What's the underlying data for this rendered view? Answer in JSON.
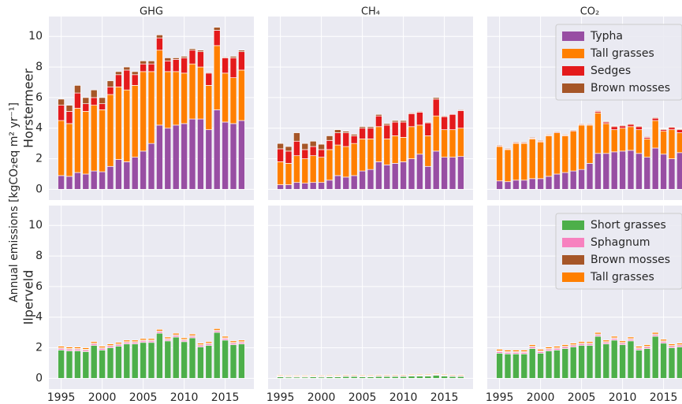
{
  "chart_data": [
    {
      "type": "bar",
      "title": "GHG",
      "row_label": "Horstermeer",
      "ylabel": "Annual emissions [kgCO₂eq m² yr⁻¹]",
      "x": [
        1995,
        1996,
        1997,
        1998,
        1999,
        2000,
        2001,
        2002,
        2003,
        2004,
        2005,
        2006,
        2007,
        2008,
        2009,
        2010,
        2011,
        2012,
        2013,
        2014,
        2015,
        2016,
        2017
      ],
      "xlim": [
        1993.5,
        2018.5
      ],
      "xticks": [
        1995,
        2000,
        2005,
        2010,
        2015
      ],
      "ylim": [
        -0.7,
        11.3
      ],
      "yticks": [
        0,
        2,
        4,
        6,
        8,
        10
      ],
      "grid": true,
      "series": [
        {
          "name": "Typha",
          "color": "#984ea3",
          "values": [
            0.9,
            0.85,
            1.1,
            1.0,
            1.2,
            1.15,
            1.5,
            1.95,
            1.8,
            2.1,
            2.5,
            3.0,
            4.2,
            4.0,
            4.2,
            4.3,
            4.6,
            4.6,
            3.9,
            5.2,
            4.4,
            4.3,
            4.5
          ]
        },
        {
          "name": "Tall grasses",
          "color": "#ff7f00",
          "values": [
            3.6,
            3.45,
            4.2,
            4.1,
            4.3,
            4.05,
            4.7,
            4.75,
            4.7,
            4.7,
            5.2,
            4.7,
            4.9,
            3.7,
            3.5,
            3.3,
            3.6,
            3.4,
            2.9,
            4.2,
            3.2,
            3.0,
            3.3
          ]
        },
        {
          "name": "Sedges",
          "color": "#e41a1c",
          "values": [
            1.0,
            0.8,
            1.0,
            0.5,
            0.5,
            0.4,
            0.5,
            0.8,
            1.3,
            0.7,
            0.5,
            0.5,
            0.8,
            0.7,
            0.8,
            1.0,
            0.9,
            1.0,
            0.8,
            1.0,
            1.0,
            1.3,
            1.2
          ]
        },
        {
          "name": "Brown mosses",
          "color": "#a65628",
          "values": [
            0.4,
            0.4,
            0.5,
            0.4,
            0.5,
            0.4,
            0.4,
            0.2,
            0.2,
            0.2,
            0.2,
            0.2,
            0.2,
            0.2,
            0.1,
            0.1,
            0.1,
            0.1,
            0.05,
            0.2,
            0.05,
            0.1,
            0.1
          ]
        }
      ]
    },
    {
      "type": "bar",
      "title": "CH₄",
      "x": [
        1995,
        1996,
        1997,
        1998,
        1999,
        2000,
        2001,
        2002,
        2003,
        2004,
        2005,
        2006,
        2007,
        2008,
        2009,
        2010,
        2011,
        2012,
        2013,
        2014,
        2015,
        2016,
        2017
      ],
      "xlim": [
        1993.5,
        2018.5
      ],
      "xticks": [
        1995,
        2000,
        2005,
        2010,
        2015
      ],
      "ylim": [
        -0.7,
        11.3
      ],
      "yticks": [
        0,
        2,
        4,
        6,
        8,
        10
      ],
      "grid": true,
      "series": [
        {
          "name": "Typha",
          "color": "#984ea3",
          "values": [
            0.3,
            0.3,
            0.45,
            0.4,
            0.45,
            0.45,
            0.6,
            0.9,
            0.8,
            0.9,
            1.2,
            1.3,
            1.8,
            1.6,
            1.7,
            1.8,
            2.0,
            2.3,
            1.5,
            2.5,
            2.1,
            2.1,
            2.15
          ]
        },
        {
          "name": "Tall grasses",
          "color": "#ff7f00",
          "values": [
            1.5,
            1.4,
            1.75,
            1.6,
            1.75,
            1.65,
            2.0,
            2.0,
            2.0,
            2.1,
            2.1,
            2.0,
            2.3,
            1.7,
            1.8,
            1.6,
            2.1,
            1.9,
            2.0,
            2.3,
            1.8,
            1.8,
            1.85
          ]
        },
        {
          "name": "Sedges",
          "color": "#e41a1c",
          "values": [
            0.85,
            0.8,
            0.95,
            0.6,
            0.6,
            0.5,
            0.6,
            0.8,
            0.9,
            0.5,
            0.7,
            0.7,
            0.7,
            0.9,
            0.9,
            1.0,
            0.85,
            0.85,
            0.85,
            1.1,
            0.85,
            1.0,
            1.15
          ]
        },
        {
          "name": "Brown mosses",
          "color": "#a65628",
          "values": [
            0.35,
            0.3,
            0.55,
            0.4,
            0.35,
            0.35,
            0.3,
            0.2,
            0.1,
            0.1,
            0.1,
            0.1,
            0.1,
            0.1,
            0.1,
            0.1,
            0.05,
            0.05,
            0.05,
            0.1,
            0.05,
            0.0,
            0.05
          ]
        }
      ]
    },
    {
      "type": "bar",
      "title": "CO₂",
      "legend": "upper right",
      "x": [
        1995,
        1996,
        1997,
        1998,
        1999,
        2000,
        2001,
        2002,
        2003,
        2004,
        2005,
        2006,
        2007,
        2008,
        2009,
        2010,
        2011,
        2012,
        2013,
        2014,
        2015,
        2016,
        2017
      ],
      "xlim": [
        1993.5,
        2017.25
      ],
      "xticks": [
        1995,
        2000,
        2005,
        2010,
        2015
      ],
      "ylim": [
        -0.7,
        11.3
      ],
      "yticks": [
        0,
        2,
        4,
        6,
        8,
        10
      ],
      "grid": true,
      "series": [
        {
          "name": "Typha",
          "color": "#984ea3",
          "values": [
            0.55,
            0.5,
            0.6,
            0.6,
            0.7,
            0.7,
            0.85,
            1.0,
            1.1,
            1.2,
            1.3,
            1.7,
            2.35,
            2.35,
            2.45,
            2.5,
            2.55,
            2.35,
            2.1,
            2.7,
            2.3,
            2.0,
            2.4
          ]
        },
        {
          "name": "Tall grasses",
          "color": "#ff7f00",
          "values": [
            2.25,
            2.1,
            2.4,
            2.4,
            2.6,
            2.4,
            2.65,
            2.7,
            2.4,
            2.6,
            2.9,
            2.5,
            2.65,
            1.95,
            1.45,
            1.5,
            1.55,
            1.55,
            1.2,
            1.8,
            1.5,
            1.9,
            1.3
          ]
        },
        {
          "name": "Sedges",
          "color": "#e41a1c",
          "values": [
            0.05,
            0.05,
            0.05,
            0.05,
            0.05,
            0.05,
            0.05,
            0.05,
            0.05,
            0.05,
            0.05,
            0.05,
            0.1,
            0.1,
            0.2,
            0.15,
            0.15,
            0.2,
            0.1,
            0.15,
            0.1,
            0.15,
            0.2
          ]
        },
        {
          "name": "Brown mosses",
          "color": "#a65628",
          "values": [
            0.05,
            0.05,
            0.05,
            0.05,
            0.05,
            0.05,
            0.05,
            0.05,
            0.05,
            0.05,
            0.05,
            0.05,
            0.05,
            0.05,
            0.05,
            0.05,
            0.05,
            0.05,
            0.05,
            0.05,
            0.05,
            0.05,
            0.05
          ]
        }
      ]
    },
    {
      "type": "bar",
      "row_label": "Ilperveld",
      "x": [
        1995,
        1996,
        1997,
        1998,
        1999,
        2000,
        2001,
        2002,
        2003,
        2004,
        2005,
        2006,
        2007,
        2008,
        2009,
        2010,
        2011,
        2012,
        2013,
        2014,
        2015,
        2016,
        2017
      ],
      "xlim": [
        1993.5,
        2018.5
      ],
      "xticks": [
        1995,
        2000,
        2005,
        2010,
        2015
      ],
      "ylim": [
        -0.7,
        11.3
      ],
      "yticks": [
        0,
        2,
        4,
        6,
        8,
        10
      ],
      "grid": true,
      "series": [
        {
          "name": "Short grasses",
          "color": "#4daf4a",
          "values": [
            1.85,
            1.8,
            1.8,
            1.75,
            2.15,
            1.85,
            2.0,
            2.1,
            2.25,
            2.25,
            2.35,
            2.35,
            2.95,
            2.45,
            2.7,
            2.4,
            2.65,
            2.05,
            2.15,
            3.0,
            2.5,
            2.2,
            2.25
          ]
        },
        {
          "name": "Sphagnum",
          "color": "#f781bf",
          "values": [
            0.1,
            0.1,
            0.1,
            0.1,
            0.1,
            0.1,
            0.1,
            0.1,
            0.1,
            0.1,
            0.1,
            0.1,
            0.1,
            0.1,
            0.1,
            0.1,
            0.1,
            0.1,
            0.1,
            0.1,
            0.1,
            0.1,
            0.1
          ]
        },
        {
          "name": "Brown mosses",
          "color": "#a65628",
          "values": [
            0.05,
            0.05,
            0.05,
            0.05,
            0.05,
            0.05,
            0.05,
            0.05,
            0.05,
            0.05,
            0.05,
            0.05,
            0.05,
            0.05,
            0.05,
            0.05,
            0.05,
            0.05,
            0.05,
            0.05,
            0.05,
            0.05,
            0.05
          ]
        },
        {
          "name": "Tall grasses",
          "color": "#ff7f00",
          "values": [
            0.1,
            0.1,
            0.1,
            0.1,
            0.1,
            0.1,
            0.1,
            0.1,
            0.1,
            0.1,
            0.1,
            0.1,
            0.1,
            0.1,
            0.1,
            0.1,
            0.1,
            0.1,
            0.1,
            0.1,
            0.1,
            0.1,
            0.1
          ]
        }
      ]
    },
    {
      "type": "bar",
      "x": [
        1995,
        1996,
        1997,
        1998,
        1999,
        2000,
        2001,
        2002,
        2003,
        2004,
        2005,
        2006,
        2007,
        2008,
        2009,
        2010,
        2011,
        2012,
        2013,
        2014,
        2015,
        2016,
        2017
      ],
      "xlim": [
        1993.5,
        2018.5
      ],
      "xticks": [
        1995,
        2000,
        2005,
        2010,
        2015
      ],
      "ylim": [
        -0.7,
        11.3
      ],
      "yticks": [
        0,
        2,
        4,
        6,
        8,
        10
      ],
      "grid": true,
      "series": [
        {
          "name": "Short grasses",
          "color": "#4daf4a",
          "values": [
            0.1,
            0.08,
            0.08,
            0.08,
            0.1,
            0.08,
            0.1,
            0.1,
            0.12,
            0.12,
            0.1,
            0.1,
            0.12,
            0.12,
            0.12,
            0.12,
            0.15,
            0.15,
            0.15,
            0.2,
            0.15,
            0.12,
            0.12
          ]
        },
        {
          "name": "Sphagnum",
          "color": "#f781bf",
          "values": [
            0.05,
            0.05,
            0.05,
            0.05,
            0.05,
            0.05,
            0.05,
            0.05,
            0.05,
            0.05,
            0.05,
            0.05,
            0.05,
            0.05,
            0.05,
            0.05,
            0.05,
            0.05,
            0.05,
            0.05,
            0.05,
            0.05,
            0.05
          ]
        },
        {
          "name": "Brown mosses",
          "color": "#a65628",
          "values": [
            0.02,
            0.02,
            0.02,
            0.02,
            0.02,
            0.02,
            0.02,
            0.02,
            0.02,
            0.02,
            0.02,
            0.02,
            0.02,
            0.02,
            0.02,
            0.02,
            0.02,
            0.02,
            0.02,
            0.02,
            0.02,
            0.02,
            0.02
          ]
        },
        {
          "name": "Tall grasses",
          "color": "#ff7f00",
          "values": [
            0.05,
            0.05,
            0.05,
            0.05,
            0.05,
            0.05,
            0.05,
            0.05,
            0.05,
            0.05,
            0.05,
            0.05,
            0.05,
            0.05,
            0.05,
            0.05,
            0.05,
            0.05,
            0.05,
            0.05,
            0.05,
            0.05,
            0.05
          ]
        }
      ]
    },
    {
      "type": "bar",
      "legend": "upper right",
      "x": [
        1995,
        1996,
        1997,
        1998,
        1999,
        2000,
        2001,
        2002,
        2003,
        2004,
        2005,
        2006,
        2007,
        2008,
        2009,
        2010,
        2011,
        2012,
        2013,
        2014,
        2015,
        2016,
        2017
      ],
      "xlim": [
        1993.5,
        2017.25
      ],
      "xticks": [
        1995,
        2000,
        2005,
        2010,
        2015
      ],
      "ylim": [
        -0.7,
        11.3
      ],
      "yticks": [
        0,
        2,
        4,
        6,
        8,
        10
      ],
      "grid": true,
      "series": [
        {
          "name": "Short grasses",
          "color": "#4daf4a",
          "values": [
            1.65,
            1.6,
            1.6,
            1.6,
            1.95,
            1.65,
            1.8,
            1.85,
            1.95,
            2.05,
            2.15,
            2.15,
            2.75,
            2.25,
            2.5,
            2.2,
            2.45,
            1.85,
            1.95,
            2.75,
            2.3,
            2.0,
            2.05
          ]
        },
        {
          "name": "Sphagnum",
          "color": "#f781bf",
          "values": [
            0.1,
            0.1,
            0.1,
            0.1,
            0.1,
            0.1,
            0.1,
            0.1,
            0.1,
            0.1,
            0.1,
            0.1,
            0.1,
            0.1,
            0.1,
            0.1,
            0.1,
            0.1,
            0.1,
            0.1,
            0.1,
            0.1,
            0.1
          ]
        },
        {
          "name": "Brown mosses",
          "color": "#a65628",
          "values": [
            0.05,
            0.05,
            0.05,
            0.05,
            0.05,
            0.05,
            0.05,
            0.05,
            0.05,
            0.05,
            0.05,
            0.05,
            0.05,
            0.05,
            0.05,
            0.05,
            0.05,
            0.05,
            0.05,
            0.05,
            0.05,
            0.05,
            0.05
          ]
        },
        {
          "name": "Tall grasses",
          "color": "#ff7f00",
          "values": [
            0.1,
            0.1,
            0.1,
            0.1,
            0.1,
            0.1,
            0.1,
            0.1,
            0.1,
            0.1,
            0.1,
            0.1,
            0.1,
            0.1,
            0.1,
            0.1,
            0.1,
            0.1,
            0.1,
            0.1,
            0.1,
            0.1,
            0.1
          ]
        }
      ]
    }
  ]
}
